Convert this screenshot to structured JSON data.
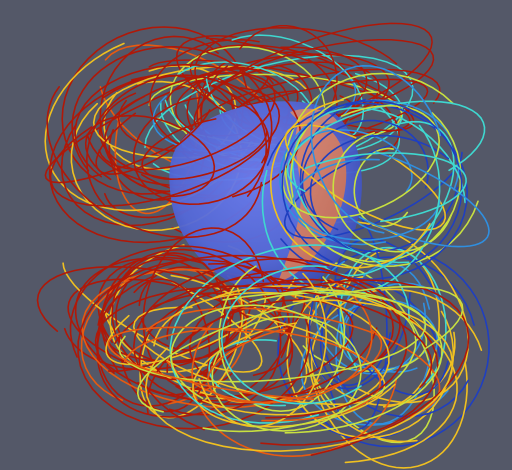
{
  "scene": {
    "background_color": "#545868",
    "surface_color": "#5468d8",
    "surface_highlight_color": "#d87a5a",
    "colormap": [
      "#1f3fc0",
      "#2f8fe0",
      "#3fd8d0",
      "#c8e040",
      "#f0c020",
      "#e85a10",
      "#b01808"
    ],
    "colormap_name": "jet"
  }
}
